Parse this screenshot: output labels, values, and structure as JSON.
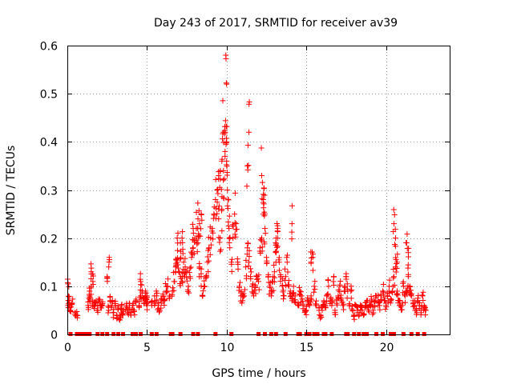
{
  "chart_data": {
    "type": "scatter",
    "title": "Day 243 of 2017, SRMTID for receiver av39",
    "xlabel": "GPS time / hours",
    "ylabel": "SRMTID / TECUs",
    "xlim": [
      0,
      24
    ],
    "ylim": [
      0,
      0.6
    ],
    "x_ticks": [
      "0",
      "5",
      "10",
      "15",
      "20"
    ],
    "x_tick_values": [
      0,
      5,
      10,
      15,
      20
    ],
    "y_ticks": [
      "0",
      "0.1",
      "0.2",
      "0.3",
      "0.4",
      "0.5",
      "0.6"
    ],
    "y_tick_values": [
      0,
      0.1,
      0.2,
      0.3,
      0.4,
      0.5,
      0.6
    ],
    "grid": true,
    "marker": "+",
    "color": "#ff0000",
    "series": [
      {
        "name": "SRMTID",
        "x": [
          0.05,
          0.1,
          0.15,
          0.2,
          0.3,
          0.5,
          0.6,
          1.3,
          1.4,
          1.5,
          1.6,
          1.7,
          1.8,
          1.9,
          2.0,
          2.1,
          2.2,
          2.6,
          2.7,
          2.8,
          2.9,
          3.0,
          3.1,
          3.2,
          3.3,
          3.4,
          3.5,
          3.7,
          3.8,
          3.9,
          4.0,
          4.1,
          4.2,
          4.3,
          4.5,
          4.6,
          4.7,
          4.8,
          4.9,
          5.0,
          5.3,
          5.5,
          5.6,
          5.7,
          5.8,
          5.9,
          6.0,
          6.1,
          6.2,
          6.3,
          6.4,
          6.6,
          6.7,
          6.8,
          6.9,
          7.0,
          7.1,
          7.2,
          7.3,
          7.4,
          7.5,
          7.6,
          7.7,
          7.8,
          7.9,
          8.0,
          8.1,
          8.2,
          8.3,
          8.4,
          8.5,
          8.6,
          8.7,
          8.8,
          8.9,
          9.0,
          9.1,
          9.2,
          9.3,
          9.4,
          9.5,
          9.6,
          9.7,
          9.8,
          9.9,
          10.0,
          10.05,
          10.1,
          10.15,
          10.2,
          10.3,
          10.4,
          10.5,
          10.6,
          10.7,
          10.8,
          10.9,
          11.0,
          11.1,
          11.2,
          11.3,
          11.4,
          11.5,
          11.6,
          11.7,
          11.8,
          11.9,
          12.0,
          12.1,
          12.2,
          12.3,
          12.4,
          12.5,
          12.6,
          12.7,
          12.8,
          12.9,
          13.0,
          13.1,
          13.2,
          13.3,
          13.4,
          13.5,
          13.6,
          13.7,
          13.8,
          13.9,
          14.0,
          14.1,
          14.2,
          14.3,
          14.5,
          14.6,
          14.7,
          14.8,
          14.9,
          15.0,
          15.1,
          15.2,
          15.3,
          15.5,
          15.6,
          15.8,
          15.9,
          16.0,
          16.1,
          16.2,
          16.3,
          16.4,
          16.5,
          16.6,
          16.8,
          16.9,
          17.0,
          17.1,
          17.2,
          17.3,
          17.5,
          17.6,
          17.7,
          17.9,
          18.0,
          18.1,
          18.2,
          18.3,
          18.4,
          18.5,
          18.6,
          18.7,
          18.8,
          18.9,
          19.0,
          19.1,
          19.2,
          19.3,
          19.4,
          19.5,
          19.6,
          19.7,
          19.8,
          19.9,
          20.0,
          20.1,
          20.2,
          20.3,
          20.4,
          20.5,
          20.6,
          20.7,
          20.8,
          20.9,
          21.0,
          21.1,
          21.2,
          21.3,
          21.4,
          21.5,
          21.6,
          21.7,
          21.8,
          21.9,
          22.0,
          22.1,
          22.2,
          22.3,
          22.4,
          22.5,
          9.95,
          10.0,
          9.8,
          9.7,
          9.5,
          9.6,
          10.0,
          9.9,
          11.4,
          11.3,
          12.2,
          12.3,
          12.4,
          13.1,
          13.2,
          14.1,
          8.4,
          8.3,
          8.2,
          7.9,
          7.2,
          7.1,
          6.9,
          6.8,
          15.4,
          15.3,
          16.7,
          17.4,
          17.8,
          20.5,
          20.6,
          20.7,
          21.3,
          21.4,
          2.6,
          2.5,
          1.5,
          1.6,
          1.4,
          3.4,
          4.6,
          4.9,
          5.0,
          0.05
        ],
        "y": [
          0.06,
          0.07,
          0.055,
          0.05,
          0.065,
          0.045,
          0.04,
          0.06,
          0.08,
          0.1,
          0.07,
          0.06,
          0.065,
          0.05,
          0.07,
          0.055,
          0.06,
          0.05,
          0.07,
          0.06,
          0.045,
          0.06,
          0.04,
          0.055,
          0.03,
          0.045,
          0.05,
          0.06,
          0.045,
          0.055,
          0.04,
          0.06,
          0.05,
          0.07,
          0.06,
          0.08,
          0.09,
          0.065,
          0.07,
          0.06,
          0.06,
          0.07,
          0.08,
          0.06,
          0.05,
          0.065,
          0.08,
          0.07,
          0.09,
          0.1,
          0.075,
          0.09,
          0.11,
          0.14,
          0.2,
          0.13,
          0.12,
          0.11,
          0.15,
          0.14,
          0.13,
          0.1,
          0.12,
          0.16,
          0.18,
          0.2,
          0.22,
          0.19,
          0.14,
          0.12,
          0.08,
          0.1,
          0.12,
          0.15,
          0.18,
          0.2,
          0.22,
          0.25,
          0.28,
          0.3,
          0.24,
          0.2,
          0.26,
          0.34,
          0.37,
          0.36,
          0.3,
          0.28,
          0.22,
          0.18,
          0.15,
          0.2,
          0.25,
          0.23,
          0.15,
          0.1,
          0.08,
          0.07,
          0.08,
          0.14,
          0.18,
          0.15,
          0.12,
          0.1,
          0.08,
          0.1,
          0.12,
          0.11,
          0.18,
          0.2,
          0.25,
          0.22,
          0.16,
          0.12,
          0.1,
          0.08,
          0.11,
          0.13,
          0.17,
          0.2,
          0.15,
          0.12,
          0.1,
          0.08,
          0.12,
          0.15,
          0.1,
          0.09,
          0.07,
          0.1,
          0.08,
          0.06,
          0.09,
          0.08,
          0.06,
          0.05,
          0.05,
          0.07,
          0.06,
          0.08,
          0.1,
          0.06,
          0.05,
          0.04,
          0.05,
          0.07,
          0.06,
          0.08,
          0.1,
          0.07,
          0.06,
          0.05,
          0.07,
          0.08,
          0.1,
          0.07,
          0.06,
          0.12,
          0.09,
          0.06,
          0.05,
          0.04,
          0.06,
          0.05,
          0.04,
          0.06,
          0.05,
          0.04,
          0.06,
          0.07,
          0.05,
          0.06,
          0.07,
          0.05,
          0.06,
          0.08,
          0.07,
          0.06,
          0.08,
          0.09,
          0.07,
          0.06,
          0.08,
          0.1,
          0.07,
          0.09,
          0.12,
          0.14,
          0.09,
          0.07,
          0.06,
          0.06,
          0.1,
          0.08,
          0.09,
          0.12,
          0.1,
          0.08,
          0.07,
          0.06,
          0.05,
          0.07,
          0.06,
          0.05,
          0.08,
          0.06,
          0.05,
          0.58,
          0.52,
          0.42,
          0.36,
          0.33,
          0.34,
          0.4,
          0.38,
          0.42,
          0.35,
          0.33,
          0.28,
          0.25,
          0.2,
          0.22,
          0.23,
          0.25,
          0.23,
          0.24,
          0.22,
          0.2,
          0.19,
          0.15,
          0.13,
          0.16,
          0.15,
          0.11,
          0.1,
          0.09,
          0.23,
          0.2,
          0.15,
          0.19,
          0.17,
          0.14,
          0.12,
          0.13,
          0.11,
          0.09,
          0.06,
          0.11,
          0.09,
          0.08,
          0.105
        ],
        "floor_x": [
          0.2,
          0.6,
          0.8,
          1.0,
          1.2,
          1.4,
          1.9,
          2.2,
          2.5,
          2.9,
          3.2,
          3.5,
          4.1,
          4.3,
          4.6,
          5.3,
          5.6,
          6.5,
          6.6,
          7.1,
          7.9,
          8.2,
          9.3,
          10.3,
          12.0,
          12.4,
          12.8,
          13.1,
          13.7,
          14.5,
          14.6,
          15.0,
          15.2,
          15.5,
          15.7,
          16.1,
          16.2,
          16.6,
          17.5,
          17.6,
          18.0,
          18.3,
          18.6,
          18.8,
          19.4,
          19.8,
          20.3,
          20.5,
          21.1,
          21.6,
          22.0,
          22.4
        ]
      }
    ]
  }
}
